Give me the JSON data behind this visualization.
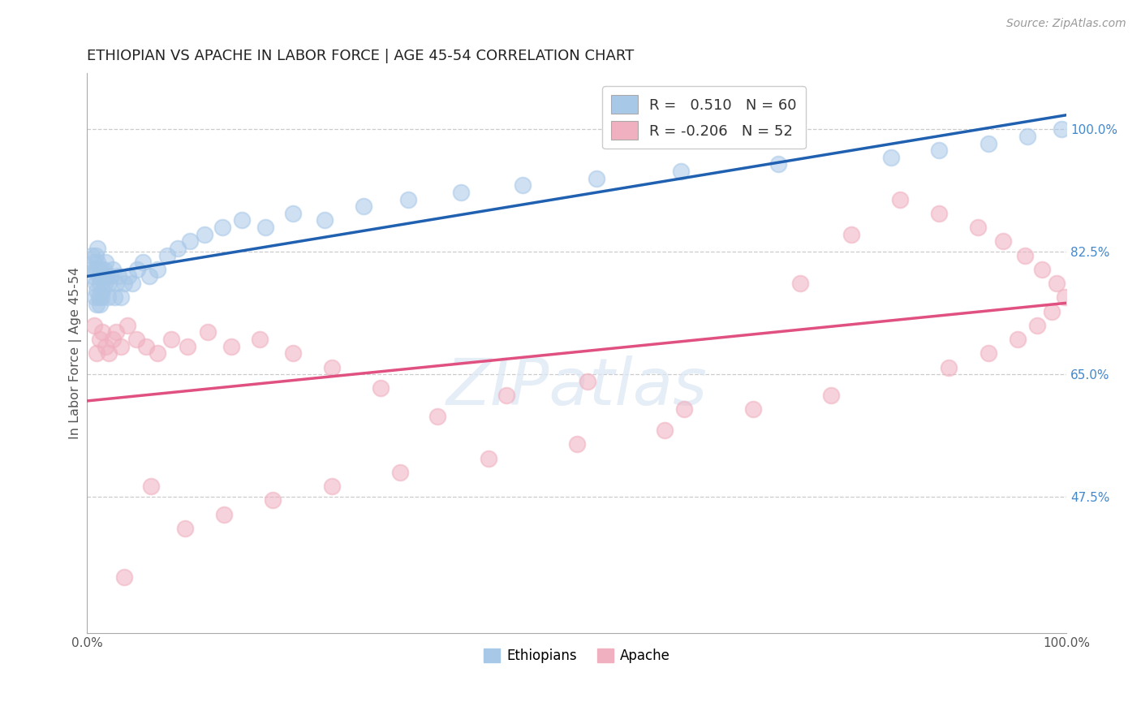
{
  "title": "ETHIOPIAN VS APACHE IN LABOR FORCE | AGE 45-54 CORRELATION CHART",
  "source_text": "Source: ZipAtlas.com",
  "ylabel": "In Labor Force | Age 45-54",
  "xmin": 0.0,
  "xmax": 1.0,
  "ymin": 0.28,
  "ymax": 1.08,
  "x_tick_labels": [
    "0.0%",
    "100.0%"
  ],
  "y_tick_labels": [
    "47.5%",
    "65.0%",
    "82.5%",
    "100.0%"
  ],
  "y_ticks": [
    0.475,
    0.65,
    0.825,
    1.0
  ],
  "ethiopian_color": "#a8c8e8",
  "apache_color": "#f0b0c0",
  "trendline_ethiopian_color": "#2060b0",
  "trendline_apache_color": "#e05080",
  "r_ethiopian": 0.51,
  "n_ethiopian": 60,
  "r_apache": -0.206,
  "n_apache": 52,
  "watermark": "ZIPatlas",
  "eth_x": [
    0.005,
    0.006,
    0.007,
    0.008,
    0.008,
    0.009,
    0.009,
    0.01,
    0.01,
    0.01,
    0.011,
    0.011,
    0.012,
    0.012,
    0.013,
    0.013,
    0.014,
    0.015,
    0.015,
    0.016,
    0.017,
    0.018,
    0.019,
    0.02,
    0.021,
    0.022,
    0.024,
    0.026,
    0.028,
    0.03,
    0.032,
    0.035,
    0.038,
    0.042,
    0.046,
    0.051,
    0.057,
    0.064,
    0.072,
    0.082,
    0.093,
    0.105,
    0.12,
    0.138,
    0.158,
    0.182,
    0.21,
    0.243,
    0.282,
    0.328,
    0.382,
    0.445,
    0.52,
    0.606,
    0.706,
    0.821,
    0.87,
    0.92,
    0.96,
    0.995
  ],
  "eth_y": [
    0.82,
    0.79,
    0.81,
    0.76,
    0.8,
    0.78,
    0.82,
    0.75,
    0.77,
    0.8,
    0.81,
    0.83,
    0.76,
    0.79,
    0.75,
    0.78,
    0.8,
    0.76,
    0.79,
    0.77,
    0.8,
    0.78,
    0.81,
    0.79,
    0.76,
    0.78,
    0.79,
    0.8,
    0.76,
    0.78,
    0.79,
    0.76,
    0.78,
    0.79,
    0.78,
    0.8,
    0.81,
    0.79,
    0.8,
    0.82,
    0.83,
    0.84,
    0.85,
    0.86,
    0.87,
    0.86,
    0.88,
    0.87,
    0.89,
    0.9,
    0.91,
    0.92,
    0.93,
    0.94,
    0.95,
    0.96,
    0.97,
    0.98,
    0.99,
    1.0
  ],
  "apa_x": [
    0.007,
    0.01,
    0.013,
    0.016,
    0.019,
    0.022,
    0.026,
    0.03,
    0.035,
    0.041,
    0.05,
    0.06,
    0.072,
    0.086,
    0.103,
    0.123,
    0.147,
    0.176,
    0.21,
    0.25,
    0.3,
    0.358,
    0.428,
    0.511,
    0.61,
    0.728,
    0.78,
    0.83,
    0.87,
    0.91,
    0.935,
    0.958,
    0.975,
    0.99,
    0.998,
    0.985,
    0.97,
    0.95,
    0.92,
    0.88,
    0.76,
    0.68,
    0.59,
    0.5,
    0.41,
    0.32,
    0.25,
    0.19,
    0.14,
    0.1,
    0.065,
    0.038
  ],
  "apa_y": [
    0.72,
    0.68,
    0.7,
    0.71,
    0.69,
    0.68,
    0.7,
    0.71,
    0.69,
    0.72,
    0.7,
    0.69,
    0.68,
    0.7,
    0.69,
    0.71,
    0.69,
    0.7,
    0.68,
    0.66,
    0.63,
    0.59,
    0.62,
    0.64,
    0.6,
    0.78,
    0.85,
    0.9,
    0.88,
    0.86,
    0.84,
    0.82,
    0.8,
    0.78,
    0.76,
    0.74,
    0.72,
    0.7,
    0.68,
    0.66,
    0.62,
    0.6,
    0.57,
    0.55,
    0.53,
    0.51,
    0.49,
    0.47,
    0.45,
    0.43,
    0.49,
    0.36
  ]
}
